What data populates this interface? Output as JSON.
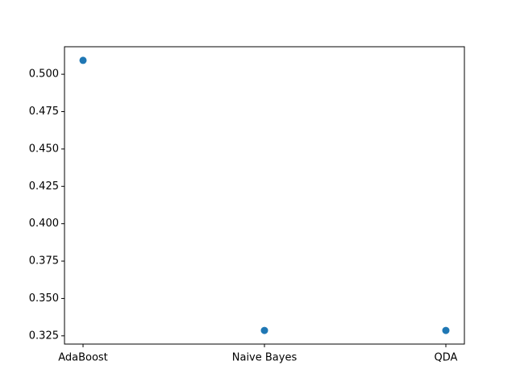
{
  "chart_data": {
    "type": "scatter",
    "title": "",
    "xlabel": "",
    "ylabel": "",
    "categories": [
      "AdaBoost",
      "Naive Bayes",
      "QDA"
    ],
    "values": [
      0.5093,
      0.3286,
      0.3286
    ],
    "ylim": [
      0.3195,
      0.5184
    ],
    "yticks": [
      0.325,
      0.35,
      0.375,
      0.4,
      0.425,
      0.45,
      0.475,
      0.5
    ],
    "ytick_labels": [
      "0.325",
      "0.350",
      "0.375",
      "0.400",
      "0.425",
      "0.450",
      "0.475",
      "0.500"
    ],
    "grid": false,
    "marker_color": "#1f77b4"
  }
}
